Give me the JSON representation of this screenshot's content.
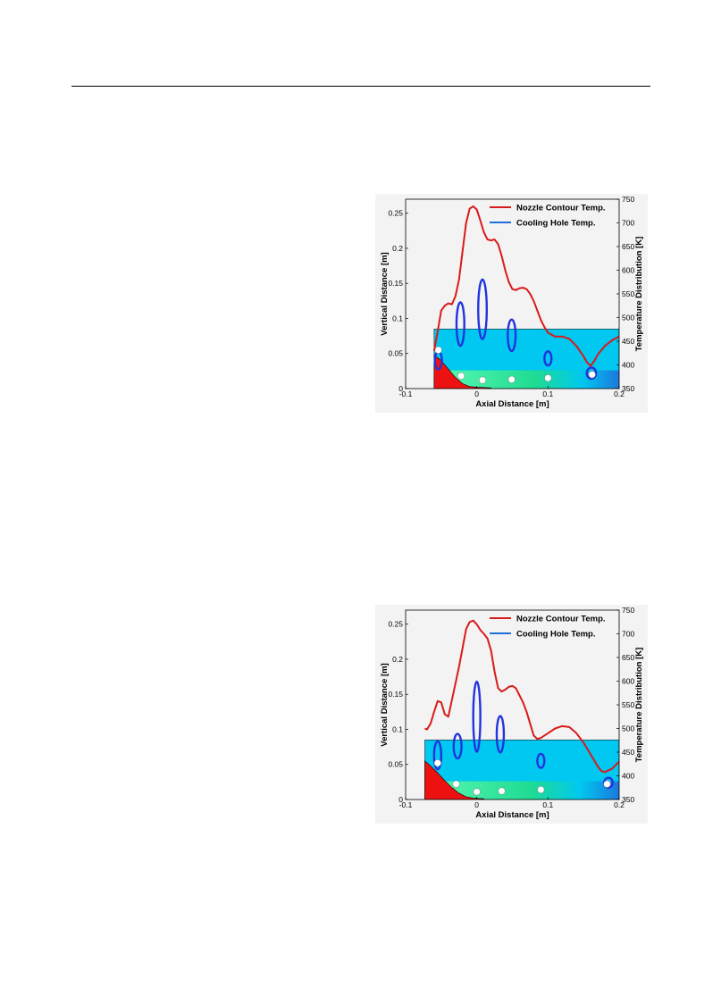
{
  "colors": {
    "nozzle_temp_line": "#d91a1a",
    "cooling_hole_outline": "#2233dd",
    "cooling_hole_region": "#00c8f0",
    "nozzle_wall": "#ee1111",
    "flow_low": "#22dd88",
    "flow_mid": "#66ffaa",
    "flow_cool": "#1f6fd9",
    "hole_marker": "#ffffff"
  },
  "chart_data": [
    {
      "type": "line",
      "xlabel": "Axial Distance [m]",
      "ylabel": "Vertical Distance [m]",
      "y2label": "Temperature Distribution [K]",
      "xlim": [
        -0.1,
        0.2
      ],
      "ylim": [
        0,
        0.27
      ],
      "y2lim": [
        350,
        750
      ],
      "x_ticks": [
        "-0.1",
        "0",
        "0.1",
        "0.2"
      ],
      "y_ticks": [
        "0",
        "0.05",
        "0.1",
        "0.15",
        "0.2",
        "0.25"
      ],
      "y2_ticks": [
        "350",
        "400",
        "450",
        "500",
        "550",
        "600",
        "650",
        "700",
        "750"
      ],
      "legend": {
        "position": "top-right",
        "entries": [
          "Nozzle Contour Temp.",
          "Cooling Hole Temp."
        ]
      },
      "series": [
        {
          "name": "Nozzle Contour Temp.",
          "axis": "right",
          "x": [
            -0.06,
            -0.055,
            -0.05,
            -0.045,
            -0.04,
            -0.035,
            -0.03,
            -0.025,
            -0.02,
            -0.015,
            -0.01,
            -0.005,
            0.0,
            0.005,
            0.01,
            0.015,
            0.02,
            0.025,
            0.03,
            0.035,
            0.04,
            0.045,
            0.05,
            0.055,
            0.06,
            0.065,
            0.07,
            0.075,
            0.08,
            0.085,
            0.09,
            0.095,
            0.1,
            0.11,
            0.12,
            0.13,
            0.14,
            0.15,
            0.155,
            0.16,
            0.165,
            0.17,
            0.18,
            0.19,
            0.2
          ],
          "y": [
            430,
            470,
            515,
            525,
            530,
            528,
            545,
            580,
            640,
            700,
            730,
            735,
            728,
            705,
            680,
            665,
            663,
            665,
            655,
            630,
            600,
            575,
            560,
            558,
            562,
            563,
            560,
            550,
            535,
            515,
            495,
            480,
            468,
            460,
            460,
            455,
            440,
            418,
            405,
            398,
            408,
            422,
            440,
            452,
            460
          ]
        },
        {
          "name": "Cooling Hole Temp.",
          "axis": "right",
          "x": [],
          "y": []
        }
      ],
      "cooling_hole_contours": [
        {
          "x": -0.054,
          "y": 0.04,
          "w": 0.01,
          "h": 0.025
        },
        {
          "x": -0.023,
          "y": 0.092,
          "w": 0.011,
          "h": 0.062
        },
        {
          "x": 0.008,
          "y": 0.113,
          "w": 0.012,
          "h": 0.085
        },
        {
          "x": 0.049,
          "y": 0.076,
          "w": 0.011,
          "h": 0.045
        },
        {
          "x": 0.1,
          "y": 0.043,
          "w": 0.01,
          "h": 0.02
        },
        {
          "x": 0.161,
          "y": 0.022,
          "w": 0.013,
          "h": 0.016
        }
      ],
      "cooling_hole_positions": [
        {
          "x": -0.054,
          "y": 0.055
        },
        {
          "x": -0.022,
          "y": 0.018
        },
        {
          "x": 0.008,
          "y": 0.012
        },
        {
          "x": 0.049,
          "y": 0.013
        },
        {
          "x": 0.1,
          "y": 0.015
        },
        {
          "x": 0.162,
          "y": 0.02
        }
      ],
      "domain_box": {
        "x0": -0.06,
        "x1": 0.2,
        "y0": 0,
        "y1": 0.085
      },
      "nozzle_wall": {
        "x": [
          -0.06,
          -0.05,
          -0.04,
          -0.03,
          -0.02,
          -0.01,
          0.0,
          0.02
        ],
        "y": [
          0.048,
          0.04,
          0.028,
          0.016,
          0.007,
          0.003,
          0.002,
          0.001
        ]
      }
    },
    {
      "type": "line",
      "xlabel": "Axial Distance [m]",
      "ylabel": "Vertical Distance [m]",
      "y2label": "Temperature Distribution [K]",
      "xlim": [
        -0.1,
        0.2
      ],
      "ylim": [
        0,
        0.27
      ],
      "y2lim": [
        350,
        750
      ],
      "x_ticks": [
        "-0.1",
        "0",
        "0.1",
        "0.2"
      ],
      "y_ticks": [
        "0",
        "0.05",
        "0.1",
        "0.15",
        "0.2",
        "0.25"
      ],
      "y2_ticks": [
        "350",
        "400",
        "450",
        "500",
        "550",
        "600",
        "650",
        "700",
        "750"
      ],
      "legend": {
        "position": "top-right",
        "entries": [
          "Nozzle Contour Temp.",
          "Cooling Hole Temp."
        ]
      },
      "series": [
        {
          "name": "Nozzle Contour Temp.",
          "axis": "right",
          "x": [
            -0.073,
            -0.07,
            -0.065,
            -0.06,
            -0.055,
            -0.05,
            -0.045,
            -0.04,
            -0.035,
            -0.03,
            -0.025,
            -0.02,
            -0.015,
            -0.01,
            -0.005,
            0.0,
            0.005,
            0.01,
            0.015,
            0.02,
            0.025,
            0.03,
            0.035,
            0.04,
            0.045,
            0.05,
            0.055,
            0.06,
            0.065,
            0.07,
            0.075,
            0.08,
            0.085,
            0.09,
            0.1,
            0.11,
            0.12,
            0.13,
            0.14,
            0.15,
            0.16,
            0.17,
            0.175,
            0.18,
            0.19,
            0.2
          ],
          "y": [
            500,
            498,
            510,
            535,
            558,
            555,
            530,
            525,
            560,
            595,
            630,
            670,
            710,
            725,
            728,
            720,
            708,
            700,
            690,
            665,
            620,
            585,
            578,
            582,
            588,
            590,
            585,
            570,
            555,
            535,
            510,
            485,
            478,
            480,
            490,
            500,
            505,
            503,
            490,
            470,
            445,
            420,
            410,
            408,
            415,
            430
          ]
        },
        {
          "name": "Cooling Hole Temp.",
          "axis": "right",
          "x": [],
          "y": []
        }
      ],
      "cooling_hole_contours": [
        {
          "x": -0.055,
          "y": 0.063,
          "w": 0.01,
          "h": 0.04
        },
        {
          "x": -0.027,
          "y": 0.076,
          "w": 0.011,
          "h": 0.035
        },
        {
          "x": 0.0,
          "y": 0.118,
          "w": 0.01,
          "h": 0.1
        },
        {
          "x": 0.033,
          "y": 0.093,
          "w": 0.01,
          "h": 0.052
        },
        {
          "x": 0.09,
          "y": 0.055,
          "w": 0.01,
          "h": 0.02
        },
        {
          "x": 0.185,
          "y": 0.024,
          "w": 0.012,
          "h": 0.014
        }
      ],
      "cooling_hole_positions": [
        {
          "x": -0.055,
          "y": 0.052
        },
        {
          "x": -0.029,
          "y": 0.022
        },
        {
          "x": 0.0,
          "y": 0.011
        },
        {
          "x": 0.035,
          "y": 0.012
        },
        {
          "x": 0.09,
          "y": 0.014
        },
        {
          "x": 0.183,
          "y": 0.022
        }
      ],
      "domain_box": {
        "x0": -0.073,
        "x1": 0.2,
        "y0": 0,
        "y1": 0.085
      },
      "nozzle_wall": {
        "x": [
          -0.073,
          -0.065,
          -0.055,
          -0.045,
          -0.035,
          -0.025,
          -0.015,
          -0.005,
          0.01
        ],
        "y": [
          0.055,
          0.048,
          0.038,
          0.027,
          0.017,
          0.009,
          0.004,
          0.002,
          0.001
        ]
      }
    }
  ]
}
